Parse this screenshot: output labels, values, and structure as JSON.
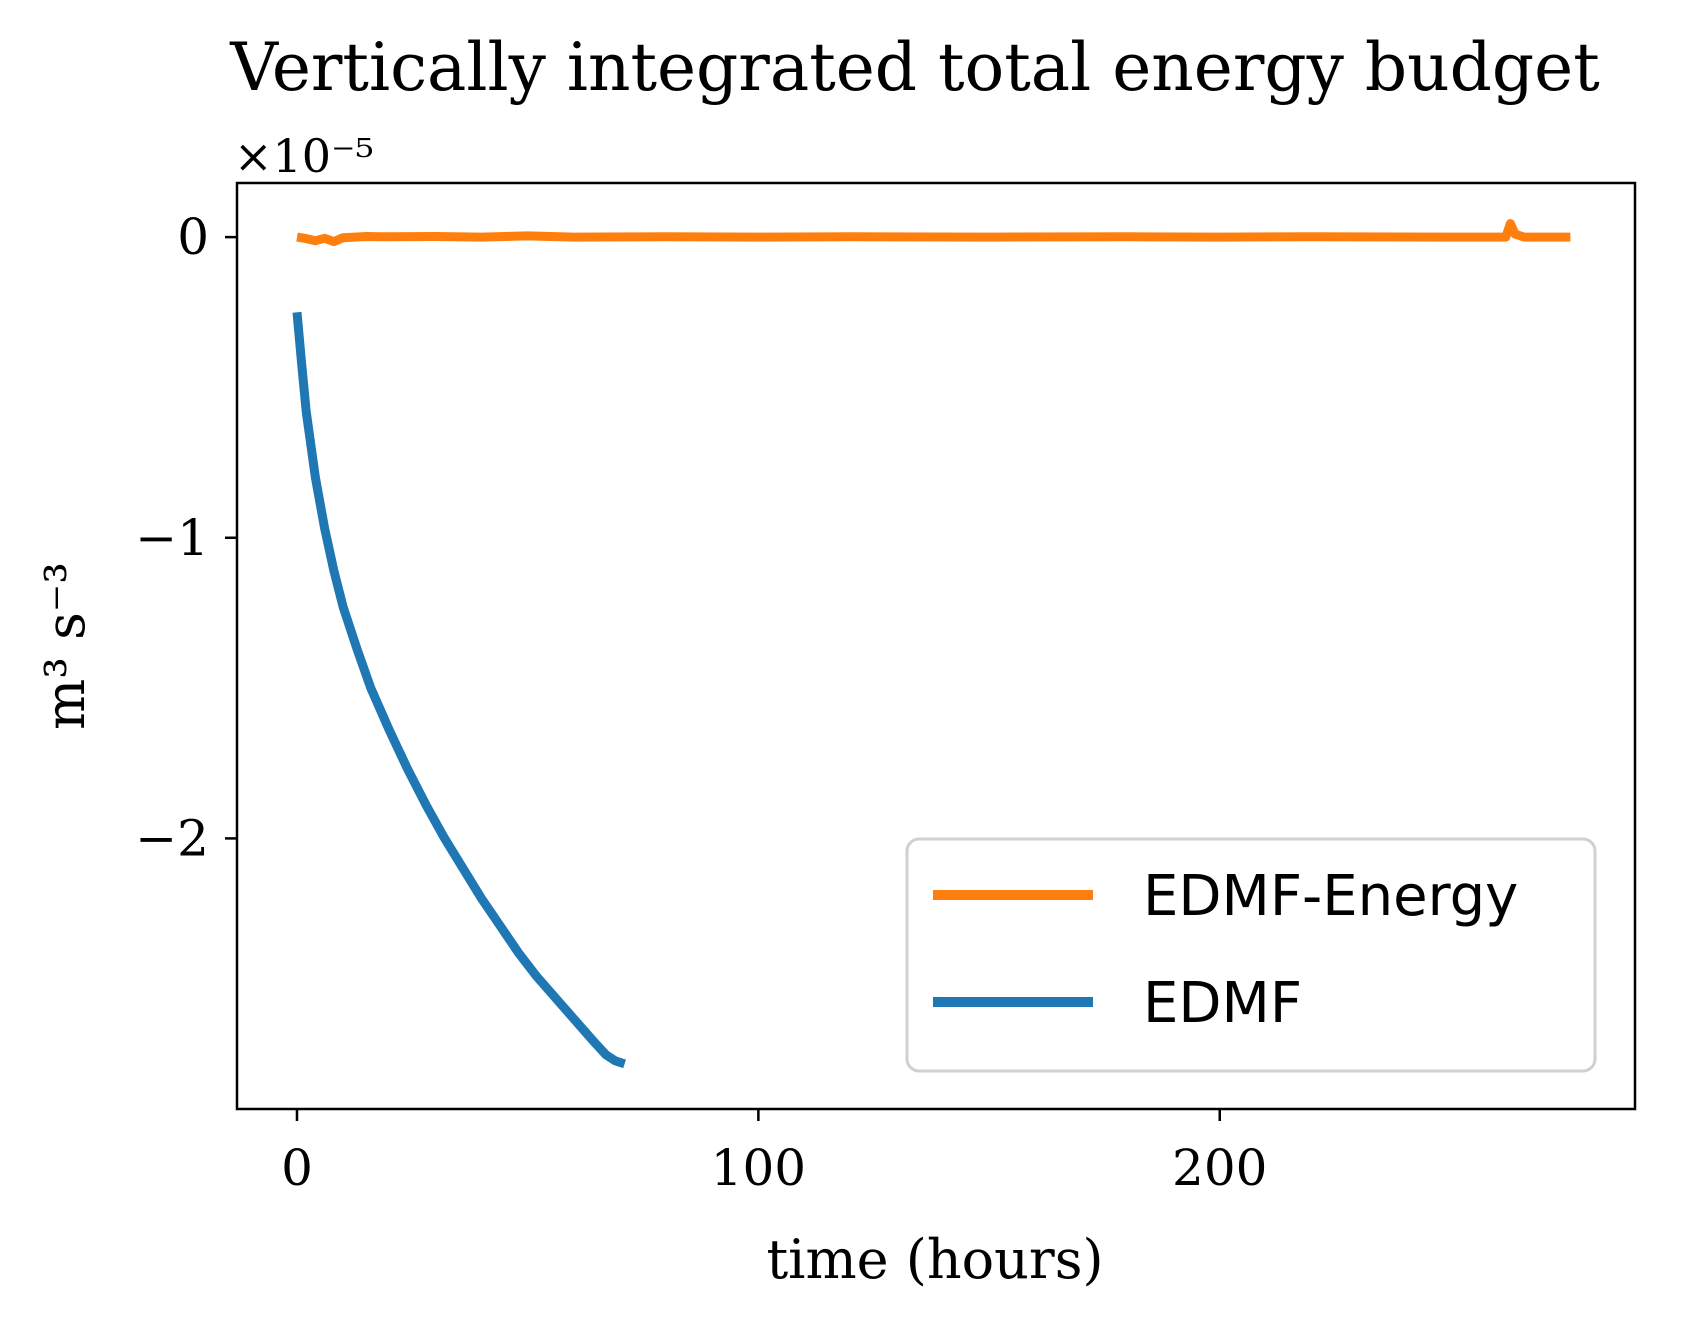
{
  "chart_data": {
    "type": "line",
    "title": "Vertically integrated total energy budget",
    "xlabel": "time (hours)",
    "ylabel": "m³ s⁻³",
    "y_offset_text": "×10⁻⁵",
    "xlim": [
      -13,
      290
    ],
    "ylim": [
      -2.9,
      0.18
    ],
    "xticks": [
      0,
      100,
      200
    ],
    "xtick_labels": [
      "0",
      "100",
      "200"
    ],
    "yticks": [
      0,
      -1,
      -2
    ],
    "ytick_labels": [
      "0",
      "−1",
      "−2"
    ],
    "grid": false,
    "legend_position": "lower-right",
    "series": [
      {
        "name": "EDMF-Energy",
        "color": "#ff7f0e",
        "x": [
          0,
          2,
          4,
          6,
          8,
          10,
          15,
          20,
          30,
          40,
          50,
          60,
          80,
          100,
          120,
          150,
          180,
          200,
          220,
          250,
          262,
          263,
          264,
          266,
          270,
          276
        ],
        "y": [
          0,
          -0.005,
          -0.012,
          -0.004,
          -0.015,
          -0.002,
          0.002,
          0.001,
          0.002,
          0.0,
          0.004,
          0.0,
          0.001,
          0.0,
          0.001,
          0.0,
          0.001,
          0.0,
          0.001,
          0.0,
          0.0,
          0.045,
          0.01,
          0.0,
          0.0,
          0.0
        ]
      },
      {
        "name": "EDMF",
        "color": "#1f77b4",
        "x": [
          0,
          1,
          2,
          4,
          6,
          8,
          10,
          13,
          16,
          20,
          24,
          28,
          32,
          36,
          40,
          44,
          48,
          52,
          56,
          60,
          64,
          67,
          69,
          71
        ],
        "y": [
          -0.25,
          -0.42,
          -0.58,
          -0.8,
          -0.97,
          -1.11,
          -1.23,
          -1.37,
          -1.5,
          -1.64,
          -1.77,
          -1.89,
          -2.0,
          -2.1,
          -2.2,
          -2.29,
          -2.38,
          -2.46,
          -2.53,
          -2.6,
          -2.67,
          -2.72,
          -2.74,
          -2.75
        ]
      }
    ]
  }
}
